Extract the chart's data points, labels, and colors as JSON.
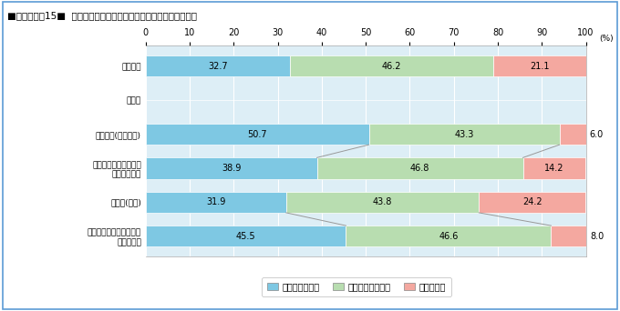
{
  "title_prefix": "■図３－１－15■",
  "title_main": "地震保険や建物更正共済等による保障（職業別）",
  "categories": [
    "全国平均",
    "職業別",
    "農林漁業(自営業主)",
    "商工サービス・自由業\n（自営業主）",
    "雇用者(全体)",
    "うち管理職・専門技術職\n（雇用者）"
  ],
  "values_covered": [
    32.7,
    0,
    50.7,
    38.9,
    31.9,
    45.5
  ],
  "values_not_covered": [
    46.2,
    0,
    43.3,
    46.8,
    43.8,
    46.6
  ],
  "values_unknown": [
    21.1,
    0,
    6.0,
    14.2,
    24.2,
    8.0
  ],
  "color_covered": "#7ec8e3",
  "color_not_covered": "#b8ddb0",
  "color_unknown": "#f4a8a0",
  "color_bg_chart": "#ddeef6",
  "color_border": "#5b9bd5",
  "legend_covered": "補償されている",
  "legend_not_covered": "補償されていない",
  "legend_unknown": "わからない",
  "xticks": [
    0,
    10,
    20,
    30,
    40,
    50,
    60,
    70,
    80,
    90,
    100
  ],
  "figsize": [
    6.8,
    3.42
  ],
  "dpi": 100
}
